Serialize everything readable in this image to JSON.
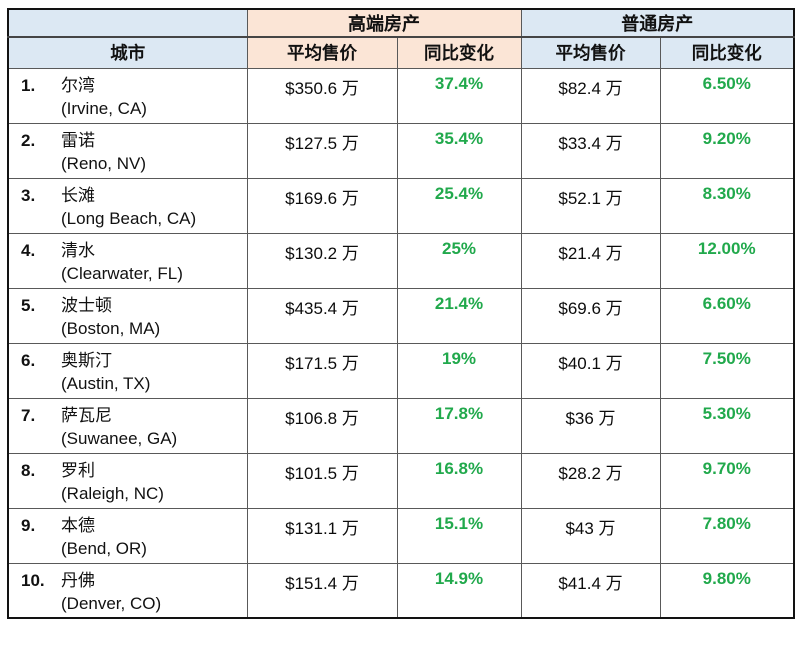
{
  "table": {
    "corner": "",
    "group_luxury": "高端房产",
    "group_regular": "普通房产",
    "col_city": "城市",
    "col_avg_price": "平均售价",
    "col_yoy_change": "同比变化",
    "rows": [
      {
        "rank": "1.",
        "city_cn": "尔湾",
        "city_en": "(Irvine, CA)",
        "lux_price": "$350.6 万",
        "lux_change": "37.4%",
        "reg_price": "$82.4 万",
        "reg_change": "6.50%"
      },
      {
        "rank": "2.",
        "city_cn": "雷诺",
        "city_en": "(Reno, NV)",
        "lux_price": "$127.5 万",
        "lux_change": "35.4%",
        "reg_price": "$33.4 万",
        "reg_change": "9.20%"
      },
      {
        "rank": "3.",
        "city_cn": "长滩",
        "city_en": "(Long Beach, CA)",
        "lux_price": "$169.6 万",
        "lux_change": "25.4%",
        "reg_price": "$52.1 万",
        "reg_change": "8.30%"
      },
      {
        "rank": "4.",
        "city_cn": "清水",
        "city_en": "(Clearwater, FL)",
        "lux_price": "$130.2 万",
        "lux_change": "25%",
        "reg_price": "$21.4 万",
        "reg_change": "12.00%"
      },
      {
        "rank": "5.",
        "city_cn": "波士顿",
        "city_en": "(Boston, MA)",
        "lux_price": "$435.4 万",
        "lux_change": "21.4%",
        "reg_price": "$69.6 万",
        "reg_change": "6.60%"
      },
      {
        "rank": "6.",
        "city_cn": "奥斯汀",
        "city_en": "(Austin, TX)",
        "lux_price": "$171.5 万",
        "lux_change": "19%",
        "reg_price": "$40.1 万",
        "reg_change": "7.50%"
      },
      {
        "rank": "7.",
        "city_cn": "萨瓦尼",
        "city_en": "(Suwanee, GA)",
        "lux_price": "$106.8 万",
        "lux_change": "17.8%",
        "reg_price": "$36 万",
        "reg_change": "5.30%"
      },
      {
        "rank": "8.",
        "city_cn": "罗利",
        "city_en": "(Raleigh, NC)",
        "lux_price": "$101.5 万",
        "lux_change": "16.8%",
        "reg_price": "$28.2 万",
        "reg_change": "9.70%"
      },
      {
        "rank": "9.",
        "city_cn": "本德",
        "city_en": "(Bend, OR)",
        "lux_price": "$131.1 万",
        "lux_change": "15.1%",
        "reg_price": "$43 万",
        "reg_change": "7.80%"
      },
      {
        "rank": "10.",
        "city_cn": "丹佛",
        "city_en": "(Denver, CO)",
        "lux_price": "$151.4 万",
        "lux_change": "14.9%",
        "reg_price": "$41.4 万",
        "reg_change": "9.80%"
      }
    ]
  },
  "colors": {
    "peach_header": "#fbe5d6",
    "blue_header": "#dce8f3",
    "green_percent": "#21a94c",
    "border_inner": "#595959",
    "border_outer": "#121212"
  },
  "chart_data": {
    "type": "table",
    "columns": [
      "城市",
      "高端房产 平均售价",
      "高端房产 同比变化",
      "普通房产 平均售价",
      "普通房产 同比变化"
    ],
    "rows": [
      [
        "1. 尔湾 (Irvine, CA)",
        "$350.6 万",
        "37.4%",
        "$82.4 万",
        "6.50%"
      ],
      [
        "2. 雷诺 (Reno, NV)",
        "$127.5 万",
        "35.4%",
        "$33.4 万",
        "9.20%"
      ],
      [
        "3. 长滩 (Long Beach, CA)",
        "$169.6 万",
        "25.4%",
        "$52.1 万",
        "8.30%"
      ],
      [
        "4. 清水 (Clearwater, FL)",
        "$130.2 万",
        "25%",
        "$21.4 万",
        "12.00%"
      ],
      [
        "5. 波士顿 (Boston, MA)",
        "$435.4 万",
        "21.4%",
        "$69.6 万",
        "6.60%"
      ],
      [
        "6. 奥斯汀 (Austin, TX)",
        "$171.5 万",
        "19%",
        "$40.1 万",
        "7.50%"
      ],
      [
        "7. 萨瓦尼 (Suwanee, GA)",
        "$106.8 万",
        "17.8%",
        "$36 万",
        "5.30%"
      ],
      [
        "8. 罗利 (Raleigh, NC)",
        "$101.5 万",
        "16.8%",
        "$28.2 万",
        "9.70%"
      ],
      [
        "9. 本德 (Bend, OR)",
        "$131.1 万",
        "15.1%",
        "$43 万",
        "7.80%"
      ],
      [
        "10. 丹佛 (Denver, CO)",
        "$151.4 万",
        "14.9%",
        "$41.4 万",
        "9.80%"
      ]
    ]
  }
}
